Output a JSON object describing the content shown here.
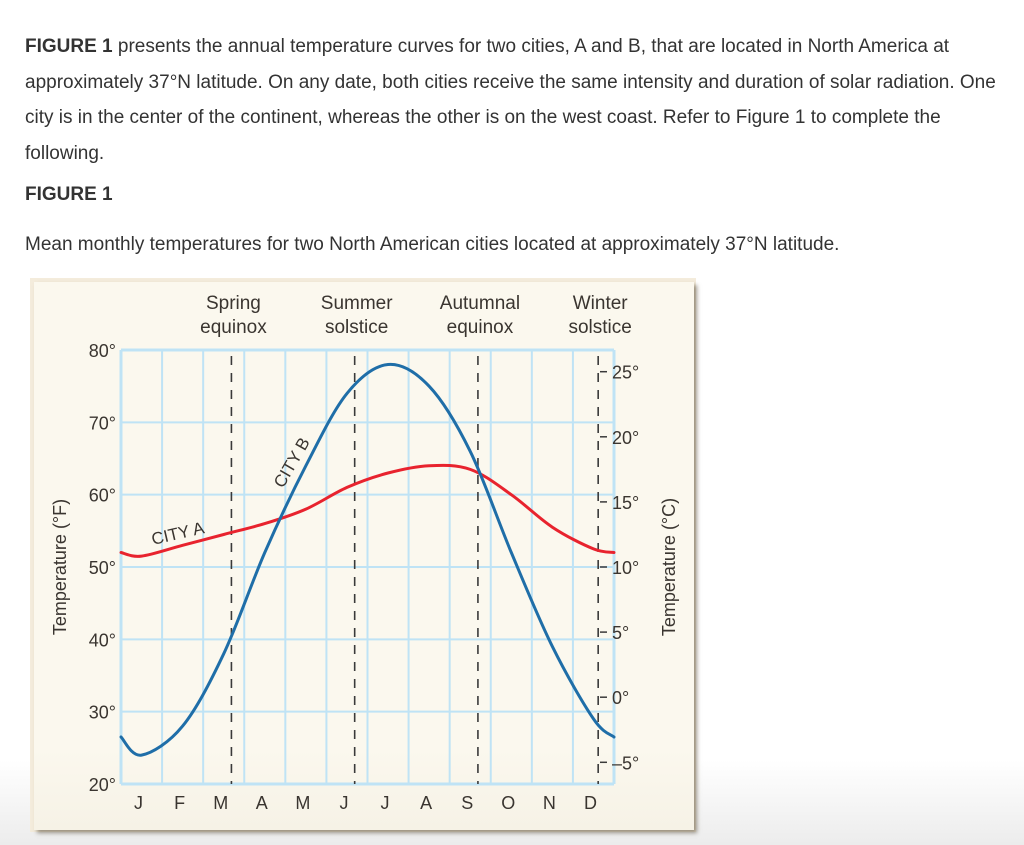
{
  "intro": {
    "bold_lead": "FIGURE 1",
    "text": " presents the annual temperature curves for two cities, A and B, that are located in North America at approximately 37°N latitude. On any date, both cities receive the same intensity and duration of solar radiation. One city is in the center of the continent, whereas the other is on the west coast. Refer to Figure 1 to complete the following."
  },
  "figure": {
    "label": "FIGURE 1",
    "caption": "Mean monthly temperatures for two North American cities located at approximately 37°N latitude."
  },
  "colors": {
    "city_a": "#e8232e",
    "city_b": "#1f6ea8",
    "grid": "#bfe3f5",
    "dashed": "#3a3a3a",
    "text": "#333333",
    "figure_bg": "#fbf8ee"
  },
  "chart_data": {
    "type": "line",
    "title": "Mean monthly temperatures for two North American cities located at approximately 37°N latitude.",
    "categories": [
      "J",
      "F",
      "M",
      "A",
      "M",
      "J",
      "J",
      "A",
      "S",
      "O",
      "N",
      "D"
    ],
    "series": [
      {
        "name": "CITY A",
        "color": "#e8232e",
        "values": [
          51.5,
          53,
          54.5,
          56,
          58,
          61,
          63,
          64,
          63.5,
          60,
          55.5,
          52.5
        ]
      },
      {
        "name": "CITY B",
        "color": "#1f6ea8",
        "values": [
          24,
          28,
          38,
          52,
          64,
          74,
          78,
          75,
          66,
          52,
          39,
          29
        ]
      }
    ],
    "xlabel": "",
    "ylabel": "Temperature (°F)",
    "ylabel_right": "Temperature (°C)",
    "ylim": [
      20,
      80
    ],
    "yticks": [
      "20°",
      "30°",
      "40°",
      "50°",
      "60°",
      "70°",
      "80°"
    ],
    "yticks_right": [
      "25°",
      "20°",
      "15°",
      "10°",
      "5°",
      "0°",
      "–5°"
    ],
    "yticks_right_values_c": [
      25,
      20,
      15,
      10,
      5,
      0,
      -5
    ],
    "grid": true,
    "annotations": [
      {
        "label_line1": "Spring",
        "label_line2": "equinox",
        "month_pos": 2.7
      },
      {
        "label_line1": "Summer",
        "label_line2": "solstice",
        "month_pos": 5.7
      },
      {
        "label_line1": "Autumnal",
        "label_line2": "equinox",
        "month_pos": 8.7
      },
      {
        "label_line1": "Winter",
        "label_line2": "solstice",
        "month_pos": 11.7
      }
    ],
    "series_labels": {
      "city_a": "CITY A",
      "city_b": "CITY B"
    }
  }
}
